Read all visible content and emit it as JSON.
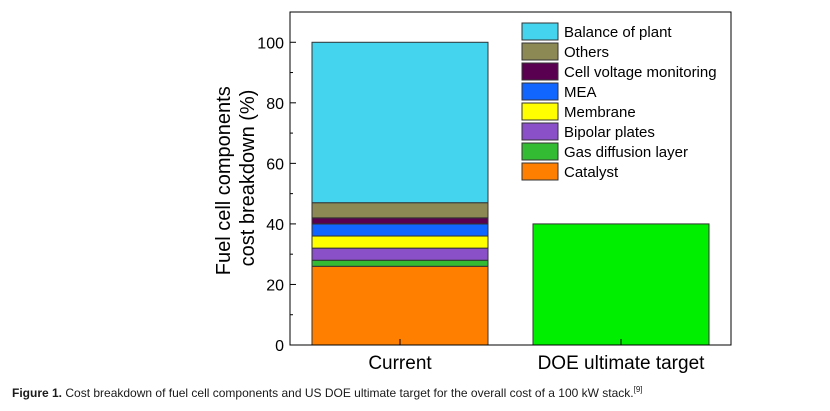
{
  "chart_data": {
    "type": "bar",
    "stacked": true,
    "categories": [
      "Current",
      "DOE ultimate target"
    ],
    "ylabel": [
      "Fuel cell components",
      "cost breakdown (%)"
    ],
    "xlabel": "",
    "ylim": [
      0,
      110
    ],
    "yticks": [
      0,
      20,
      40,
      60,
      80,
      100
    ],
    "grid": false,
    "legend_position": "top-right",
    "series": [
      {
        "name": "Catalyst",
        "color": "#FF8000",
        "values": [
          26,
          0
        ]
      },
      {
        "name": "Gas diffusion layer",
        "color": "#33BB33",
        "values": [
          2,
          0
        ]
      },
      {
        "name": "Bipolar plates",
        "color": "#8A50C8",
        "values": [
          4,
          0
        ]
      },
      {
        "name": "Membrane",
        "color": "#FFFF00",
        "values": [
          4,
          0
        ]
      },
      {
        "name": "MEA",
        "color": "#1166FF",
        "values": [
          4,
          0
        ]
      },
      {
        "name": "Cell voltage monitoring",
        "color": "#5A0050",
        "values": [
          2,
          0
        ]
      },
      {
        "name": "Others",
        "color": "#8C8955",
        "values": [
          5,
          0
        ]
      },
      {
        "name": "Balance of plant",
        "color": "#44D4EE",
        "values": [
          53,
          0
        ]
      }
    ],
    "target_bar": {
      "category": "DOE ultimate target",
      "value": 40,
      "color": "#00EE00"
    }
  },
  "caption": {
    "label": "Figure 1.",
    "text": " Cost breakdown of fuel cell components and US DOE ultimate target for the overall cost of a 100 kW stack.",
    "ref": "[9]"
  }
}
